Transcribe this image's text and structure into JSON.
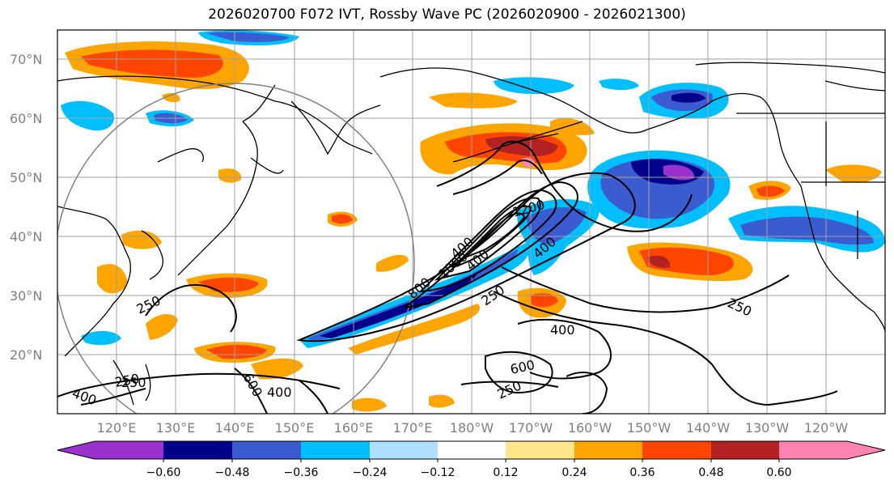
{
  "title": "2026020700 F072 IVT, Rossby Wave PC (2026020900 - 2026021300)",
  "lat_labels": [
    "70°N",
    "60°N",
    "50°N",
    "40°N",
    "30°N",
    "20°N"
  ],
  "lon_labels": [
    "120°E",
    "130°E",
    "140°E",
    "150°E",
    "160°E",
    "170°E",
    "180°W",
    "170°W",
    "160°W",
    "150°W",
    "140°W",
    "130°W",
    "120°W"
  ],
  "colorbar": {
    "colors": [
      "#9932cc",
      "#00008b",
      "#3b5bd0",
      "#00bfff",
      "#b0e0ff",
      "#ffffff",
      "#ffe88a",
      "#ffa500",
      "#ff4500",
      "#b22222",
      "#ff85b0"
    ],
    "tick_labels": [
      "−0.60",
      "−0.48",
      "−0.36",
      "−0.24",
      "−0.12",
      "0.12",
      "0.24",
      "0.36",
      "0.48",
      "0.60"
    ]
  },
  "contour_labels": [
    "250",
    "250",
    "400",
    "400",
    "600",
    "800",
    "1000",
    "1200",
    "400",
    "250",
    "400",
    "600",
    "250",
    "250",
    "400",
    "400",
    "250"
  ]
}
